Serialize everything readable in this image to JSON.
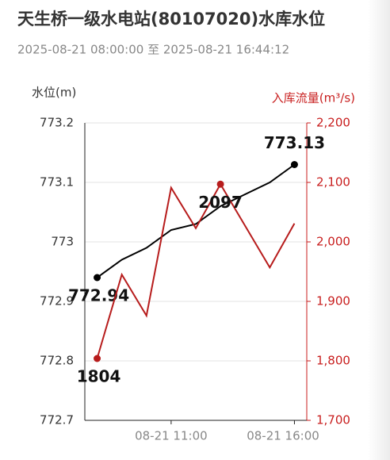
{
  "chart_data": {
    "type": "line",
    "title": "天生桥一级水电站(80107020)水库水位",
    "subtitle": "2025-08-21 08:00:00 至 2025-08-21 16:44:12",
    "y_label": "水位(m)",
    "y2_label": "入库流量(m³/s)",
    "categories": [
      null,
      null,
      null,
      "08-21 11:00",
      null,
      null,
      null,
      null,
      "08-21 16:00"
    ],
    "ylim": [
      772.7,
      773.2
    ],
    "yticks": [
      772.7,
      772.8,
      772.9,
      773,
      773.1,
      773.2
    ],
    "y2lim": [
      1700,
      2200
    ],
    "y2ticks": [
      {
        "value": 1700,
        "label": "1,700"
      },
      {
        "value": 1800,
        "label": "1,800"
      },
      {
        "value": 1900,
        "label": "1,900"
      },
      {
        "value": 2000,
        "label": "2,000"
      },
      {
        "value": 2100,
        "label": "2,100"
      },
      {
        "value": 2200,
        "label": "2,200"
      }
    ],
    "grid": true,
    "y2_color": "#c81e1e",
    "series": [
      {
        "color": "#000000",
        "values": [
          772.94,
          772.97,
          772.99,
          773.02,
          773.03,
          773.06,
          773.08,
          773.1,
          773.13
        ]
      },
      {
        "color": "#b71c1c",
        "axis": "y2",
        "values": [
          1804,
          1945,
          1876,
          2091,
          2023,
          2097,
          2027,
          1957,
          2031
        ]
      }
    ]
  }
}
